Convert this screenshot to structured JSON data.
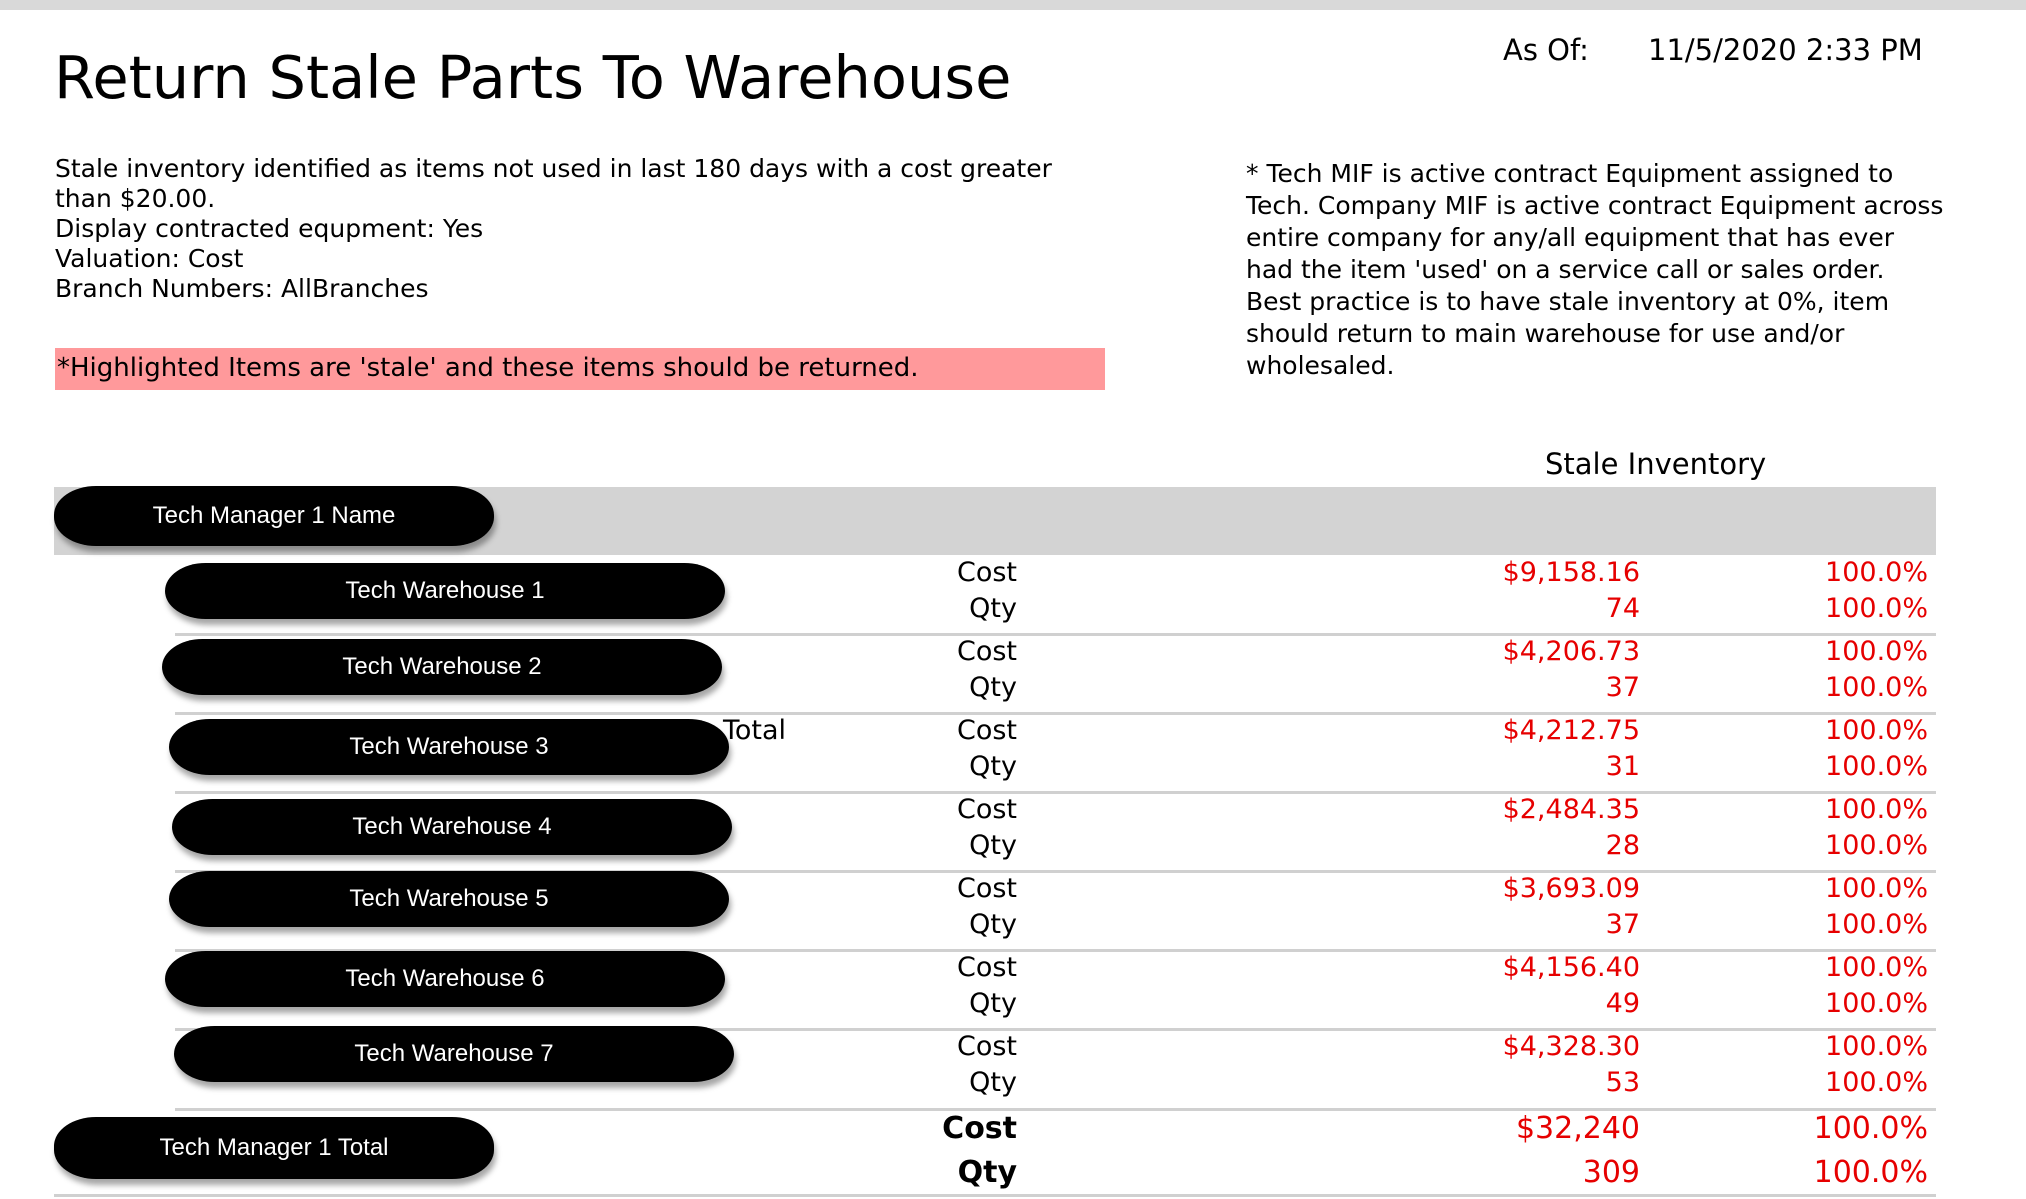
{
  "report": {
    "title": "Return Stale Parts To Warehouse",
    "as_of_label": "As Of:",
    "as_of_value": "11/5/2020 2:33 PM",
    "criteria": [
      "Stale inventory identified as items not used in last 180 days with a cost greater than $20.00.",
      "Display contracted equpment: Yes",
      "Valuation: Cost",
      "Branch Numbers: AllBranches"
    ],
    "highlight_note": "*Highlighted Items are 'stale' and these items should be returned.",
    "highlight_color": "#ff999b",
    "side_note": "* Tech MIF is active contract Equipment assigned to Tech.  Company MIF is active contract Equipment across entire company for any/all equipment that has ever had the item 'used' on a service call or sales order. Best practice is to have stale inventory at 0%, item should return to main warehouse for use and/or wholesaled.",
    "column_header": "Stale Inventory",
    "value_color": "#e60000"
  },
  "manager": {
    "name": "Tech Manager 1 Name",
    "total_label": "Tech Manager 1 Total",
    "total_cost_label": "Cost",
    "total_qty_label": "Qty",
    "total_cost": "$32,240",
    "total_cost_pct": "100.0%",
    "total_qty": "309",
    "total_qty_pct": "100.0%"
  },
  "partial_text": {
    "total_fragment": "Total"
  },
  "warehouses": [
    {
      "name": "Tech Warehouse 1",
      "cost_label": "Cost",
      "qty_label": "Qty",
      "cost": "$9,158.16",
      "cost_pct": "100.0%",
      "qty": "74",
      "qty_pct": "100.0%"
    },
    {
      "name": "Tech Warehouse 2",
      "cost_label": "Cost",
      "qty_label": "Qty",
      "cost": "$4,206.73",
      "cost_pct": "100.0%",
      "qty": "37",
      "qty_pct": "100.0%"
    },
    {
      "name": "Tech Warehouse 3",
      "cost_label": "Cost",
      "qty_label": "Qty",
      "cost": "$4,212.75",
      "cost_pct": "100.0%",
      "qty": "31",
      "qty_pct": "100.0%"
    },
    {
      "name": "Tech Warehouse 4",
      "cost_label": "Cost",
      "qty_label": "Qty",
      "cost": "$2,484.35",
      "cost_pct": "100.0%",
      "qty": "28",
      "qty_pct": "100.0%"
    },
    {
      "name": "Tech Warehouse 5",
      "cost_label": "Cost",
      "qty_label": "Qty",
      "cost": "$3,693.09",
      "cost_pct": "100.0%",
      "qty": "37",
      "qty_pct": "100.0%"
    },
    {
      "name": "Tech Warehouse 6",
      "cost_label": "Cost",
      "qty_label": "Qty",
      "cost": "$4,156.40",
      "cost_pct": "100.0%",
      "qty": "49",
      "qty_pct": "100.0%"
    },
    {
      "name": "Tech Warehouse 7",
      "cost_label": "Cost",
      "qty_label": "Qty",
      "cost": "$4,328.30",
      "cost_pct": "100.0%",
      "qty": "53",
      "qty_pct": "100.0%"
    }
  ]
}
